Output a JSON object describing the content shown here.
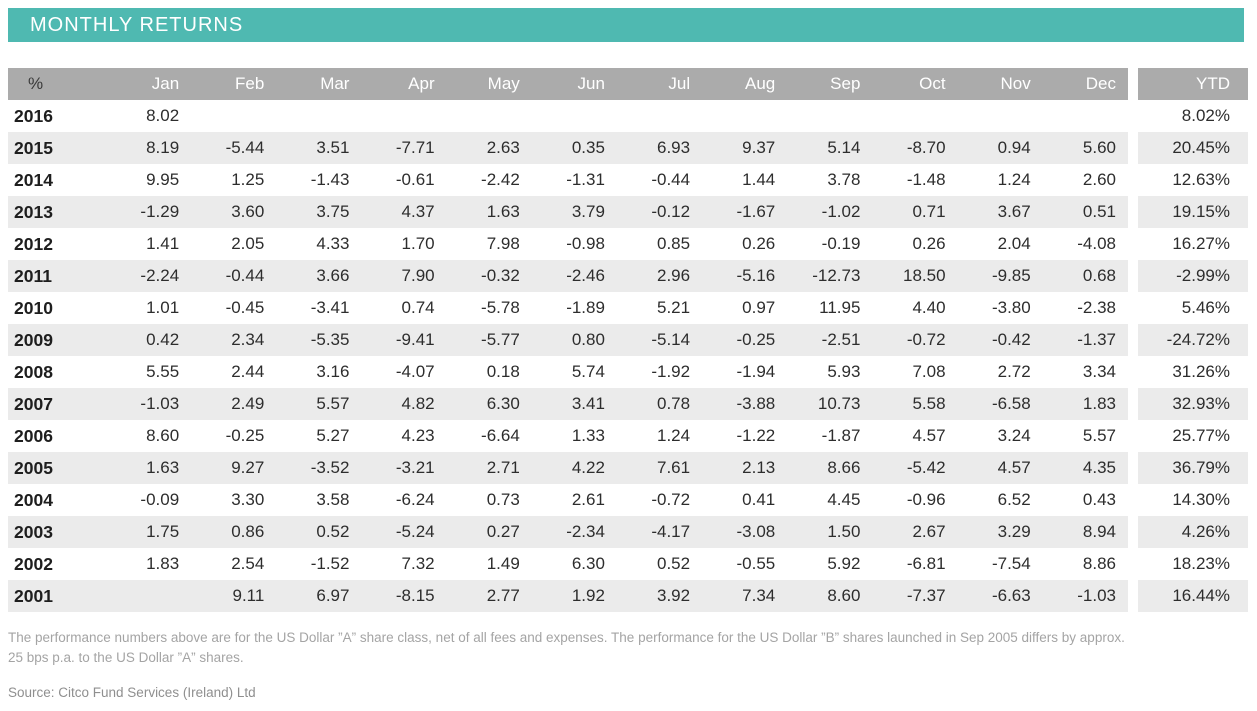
{
  "title": "MONTHLY RETURNS",
  "colors": {
    "accent_teal": "#4fb9b1",
    "header_gray": "#ababab",
    "row_stripe": "#ebebeb",
    "number_text": "#2d2d2d",
    "footnote_gray": "#a4a4a4"
  },
  "table": {
    "columns": [
      "%",
      "Jan",
      "Feb",
      "Mar",
      "Apr",
      "May",
      "Jun",
      "Jul",
      "Aug",
      "Sep",
      "Oct",
      "Nov",
      "Dec",
      "YTD"
    ],
    "rows": [
      {
        "year": "2016",
        "months": [
          "8.02",
          "",
          "",
          "",
          "",
          "",
          "",
          "",
          "",
          "",
          "",
          ""
        ],
        "ytd": "8.02%"
      },
      {
        "year": "2015",
        "months": [
          "8.19",
          "-5.44",
          "3.51",
          "-7.71",
          "2.63",
          "0.35",
          "6.93",
          "9.37",
          "5.14",
          "-8.70",
          "0.94",
          "5.60"
        ],
        "ytd": "20.45%"
      },
      {
        "year": "2014",
        "months": [
          "9.95",
          "1.25",
          "-1.43",
          "-0.61",
          "-2.42",
          "-1.31",
          "-0.44",
          "1.44",
          "3.78",
          "-1.48",
          "1.24",
          "2.60"
        ],
        "ytd": "12.63%"
      },
      {
        "year": "2013",
        "months": [
          "-1.29",
          "3.60",
          "3.75",
          "4.37",
          "1.63",
          "3.79",
          "-0.12",
          "-1.67",
          "-1.02",
          "0.71",
          "3.67",
          "0.51"
        ],
        "ytd": "19.15%"
      },
      {
        "year": "2012",
        "months": [
          "1.41",
          "2.05",
          "4.33",
          "1.70",
          "7.98",
          "-0.98",
          "0.85",
          "0.26",
          "-0.19",
          "0.26",
          "2.04",
          "-4.08"
        ],
        "ytd": "16.27%"
      },
      {
        "year": "2011",
        "months": [
          "-2.24",
          "-0.44",
          "3.66",
          "7.90",
          "-0.32",
          "-2.46",
          "2.96",
          "-5.16",
          "-12.73",
          "18.50",
          "-9.85",
          "0.68"
        ],
        "ytd": "-2.99%"
      },
      {
        "year": "2010",
        "months": [
          "1.01",
          "-0.45",
          "-3.41",
          "0.74",
          "-5.78",
          "-1.89",
          "5.21",
          "0.97",
          "11.95",
          "4.40",
          "-3.80",
          "-2.38"
        ],
        "ytd": "5.46%"
      },
      {
        "year": "2009",
        "months": [
          "0.42",
          "2.34",
          "-5.35",
          "-9.41",
          "-5.77",
          "0.80",
          "-5.14",
          "-0.25",
          "-2.51",
          "-0.72",
          "-0.42",
          "-1.37"
        ],
        "ytd": "-24.72%"
      },
      {
        "year": "2008",
        "months": [
          "5.55",
          "2.44",
          "3.16",
          "-4.07",
          "0.18",
          "5.74",
          "-1.92",
          "-1.94",
          "5.93",
          "7.08",
          "2.72",
          "3.34"
        ],
        "ytd": "31.26%"
      },
      {
        "year": "2007",
        "months": [
          "-1.03",
          "2.49",
          "5.57",
          "4.82",
          "6.30",
          "3.41",
          "0.78",
          "-3.88",
          "10.73",
          "5.58",
          "-6.58",
          "1.83"
        ],
        "ytd": "32.93%"
      },
      {
        "year": "2006",
        "months": [
          "8.60",
          "-0.25",
          "5.27",
          "4.23",
          "-6.64",
          "1.33",
          "1.24",
          "-1.22",
          "-1.87",
          "4.57",
          "3.24",
          "5.57"
        ],
        "ytd": "25.77%"
      },
      {
        "year": "2005",
        "months": [
          "1.63",
          "9.27",
          "-3.52",
          "-3.21",
          "2.71",
          "4.22",
          "7.61",
          "2.13",
          "8.66",
          "-5.42",
          "4.57",
          "4.35"
        ],
        "ytd": "36.79%"
      },
      {
        "year": "2004",
        "months": [
          "-0.09",
          "3.30",
          "3.58",
          "-6.24",
          "0.73",
          "2.61",
          "-0.72",
          "0.41",
          "4.45",
          "-0.96",
          "6.52",
          "0.43"
        ],
        "ytd": "14.30%"
      },
      {
        "year": "2003",
        "months": [
          "1.75",
          "0.86",
          "0.52",
          "-5.24",
          "0.27",
          "-2.34",
          "-4.17",
          "-3.08",
          "1.50",
          "2.67",
          "3.29",
          "8.94"
        ],
        "ytd": "4.26%"
      },
      {
        "year": "2002",
        "months": [
          "1.83",
          "2.54",
          "-1.52",
          "7.32",
          "1.49",
          "6.30",
          "0.52",
          "-0.55",
          "5.92",
          "-6.81",
          "-7.54",
          "8.86"
        ],
        "ytd": "18.23%"
      },
      {
        "year": "2001",
        "months": [
          "",
          "9.11",
          "6.97",
          "-8.15",
          "2.77",
          "1.92",
          "3.92",
          "7.34",
          "8.60",
          "-7.37",
          "-6.63",
          "-1.03"
        ],
        "ytd": "16.44%"
      }
    ]
  },
  "footnote": {
    "line1": "The performance numbers above are for the US Dollar ”A” share class, net of all fees and expenses. The performance for the US Dollar ”B” shares launched in Sep 2005 differs by approx.",
    "line2": "25 bps p.a. to the US Dollar ”A” shares."
  },
  "source": "Source: Citco Fund Services (Ireland) Ltd"
}
